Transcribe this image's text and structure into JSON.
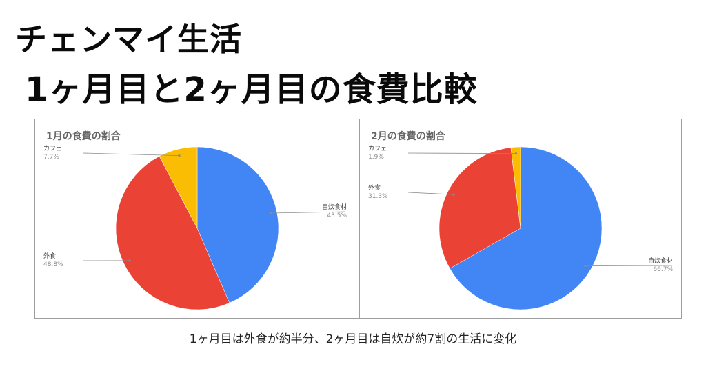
{
  "header": {
    "title_line1": "チェンマイ生活",
    "title_line2": "1ヶ月目と2ヶ月目の食費比較"
  },
  "caption": "1ヶ月目は外食が約半分、2ヶ月目は自炊が約7割の生活に変化",
  "colors": {
    "自炊食材": "#4285f4",
    "外食": "#ea4335",
    "カフェ": "#fbbc04"
  },
  "chart_data": [
    {
      "type": "pie",
      "title": "1月の食費の割合",
      "slices": [
        {
          "label": "自炊食材",
          "value": 43.5,
          "display": "43.5%"
        },
        {
          "label": "外食",
          "value": 48.8,
          "display": "48.8%"
        },
        {
          "label": "カフェ",
          "value": 7.7,
          "display": "7.7%"
        }
      ]
    },
    {
      "type": "pie",
      "title": "2月の食費の割合",
      "slices": [
        {
          "label": "自炊食材",
          "value": 66.7,
          "display": "66.7%"
        },
        {
          "label": "外食",
          "value": 31.3,
          "display": "31.3%"
        },
        {
          "label": "カフェ",
          "value": 1.9,
          "display": "1.9%"
        }
      ]
    }
  ]
}
